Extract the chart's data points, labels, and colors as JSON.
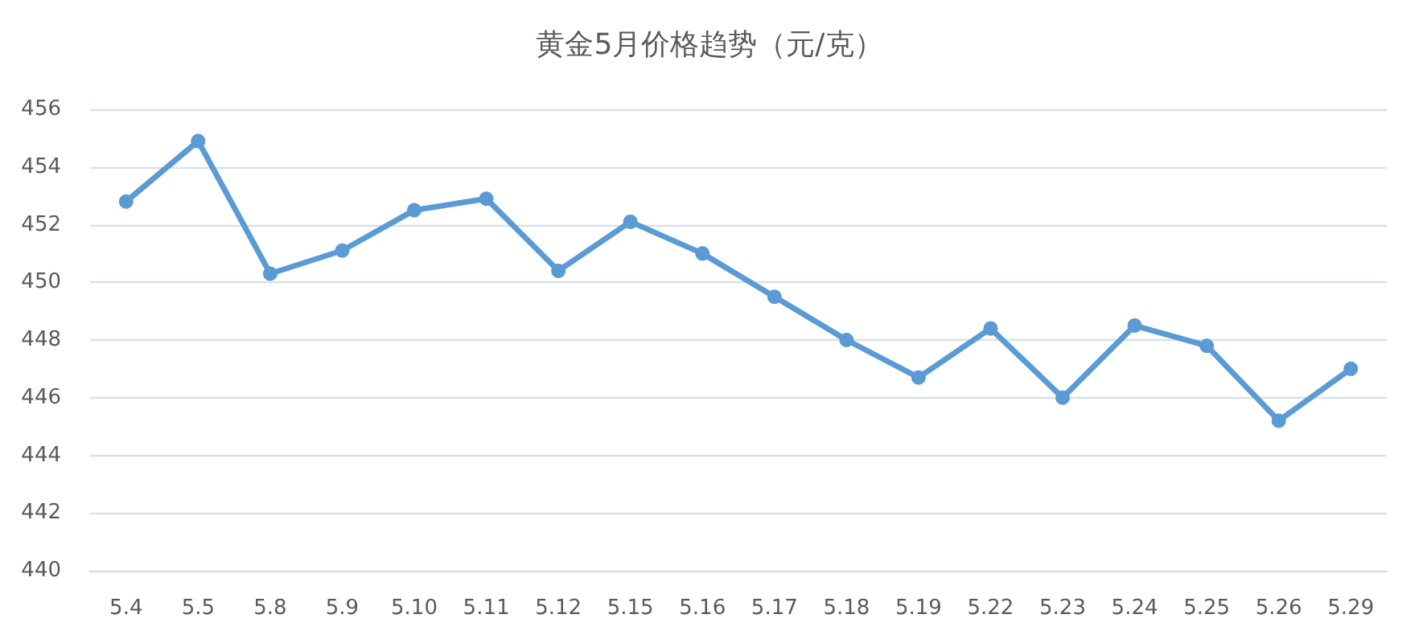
{
  "chart_data": {
    "type": "line",
    "title": "黄金5月价格趋势（元/克）",
    "categories": [
      "5.4",
      "5.5",
      "5.8",
      "5.9",
      "5.10",
      "5.11",
      "5.12",
      "5.15",
      "5.16",
      "5.17",
      "5.18",
      "5.19",
      "5.22",
      "5.23",
      "5.24",
      "5.25",
      "5.26",
      "5.29"
    ],
    "series": [
      {
        "color": "#5b9bd5",
        "values": [
          452.8,
          454.9,
          450.3,
          451.1,
          452.5,
          452.9,
          450.4,
          452.1,
          451.0,
          449.5,
          448.0,
          446.7,
          448.4,
          446.0,
          448.5,
          447.8,
          445.2,
          447.0
        ]
      }
    ],
    "ylim": [
      440,
      456
    ],
    "yticks": [
      440,
      442,
      444,
      446,
      448,
      450,
      452,
      454,
      456
    ],
    "grid": "y",
    "marker": "circle",
    "line_style": "solid"
  }
}
